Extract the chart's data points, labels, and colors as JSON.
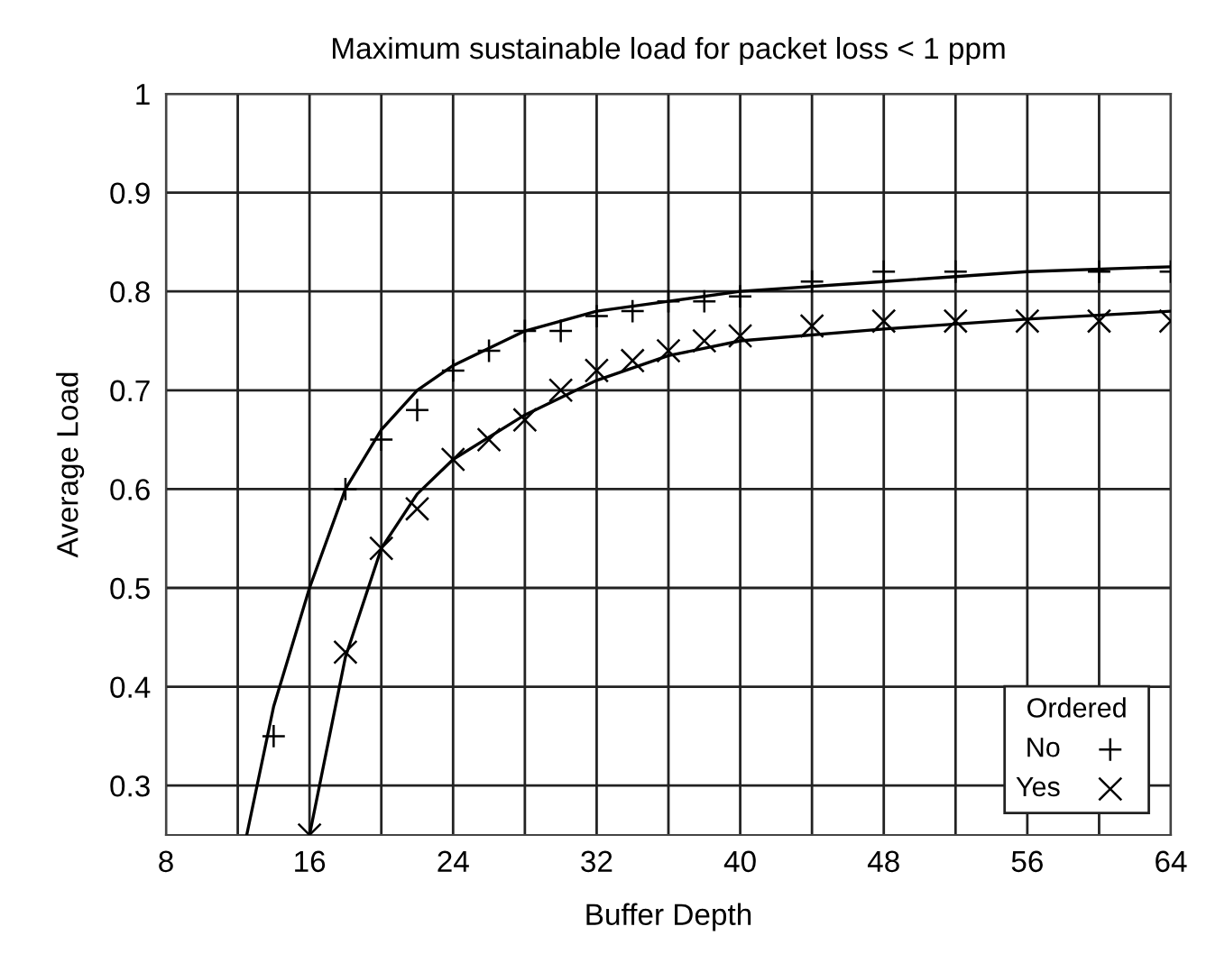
{
  "chart_data": {
    "type": "scatter",
    "title": "Maximum sustainable load for packet loss < 1 ppm",
    "xlabel": "Buffer Depth",
    "ylabel": "Average Load",
    "legend_title": "Ordered",
    "xlim": [
      8,
      64
    ],
    "xticks": [
      8,
      16,
      24,
      32,
      40,
      48,
      56,
      64
    ],
    "ylim": [
      0.25,
      1
    ],
    "yticks": [
      0.3,
      0.4,
      0.5,
      0.6,
      0.7,
      0.8,
      0.9,
      1
    ],
    "grid": true,
    "legend": "bottom right",
    "series": [
      {
        "name": "No",
        "marker": "plus",
        "color": "#000000",
        "x": [
          14,
          18,
          20,
          22,
          24,
          26,
          28,
          30,
          32,
          34,
          36,
          38,
          40,
          44,
          48,
          52,
          60,
          64
        ],
        "values": [
          0.35,
          0.6,
          0.65,
          0.68,
          0.72,
          0.74,
          0.76,
          0.76,
          0.775,
          0.78,
          0.79,
          0.79,
          0.795,
          0.81,
          0.82,
          0.82,
          0.82,
          0.82
        ]
      },
      {
        "name": "Yes",
        "marker": "cross",
        "color": "#000000",
        "x": [
          16,
          18,
          20,
          22,
          24,
          26,
          28,
          30,
          32,
          34,
          36,
          38,
          40,
          44,
          48,
          52,
          56,
          60,
          64
        ],
        "values": [
          0.25,
          0.435,
          0.54,
          0.58,
          0.63,
          0.65,
          0.67,
          0.7,
          0.72,
          0.73,
          0.74,
          0.75,
          0.755,
          0.765,
          0.77,
          0.77,
          0.77,
          0.77,
          0.77
        ]
      },
      {
        "type": "line",
        "marker": "none",
        "color": "#000000",
        "x": [
          12.5,
          14,
          16,
          18,
          20,
          22,
          24,
          28,
          32,
          36,
          40,
          48,
          56,
          64
        ],
        "values": [
          0.25,
          0.38,
          0.5,
          0.6,
          0.66,
          0.7,
          0.725,
          0.76,
          0.78,
          0.79,
          0.8,
          0.81,
          0.82,
          0.825
        ]
      },
      {
        "type": "line",
        "marker": "none",
        "color": "#000000",
        "x": [
          16,
          18,
          20,
          22,
          24,
          28,
          32,
          36,
          40,
          48,
          56,
          64
        ],
        "values": [
          0.25,
          0.43,
          0.54,
          0.595,
          0.63,
          0.675,
          0.71,
          0.735,
          0.75,
          0.762,
          0.772,
          0.78
        ]
      }
    ]
  }
}
